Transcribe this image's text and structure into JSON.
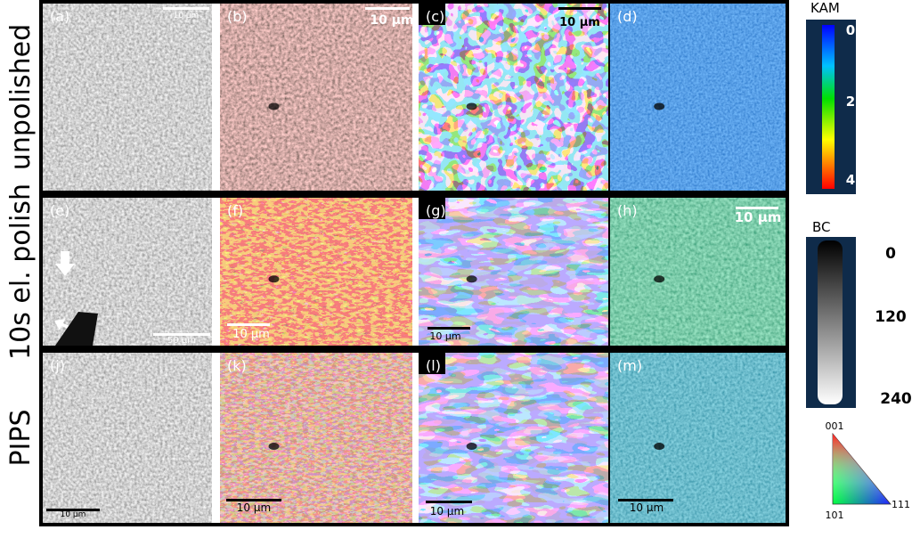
{
  "row_labels": [
    "unpolished",
    "10s el. polish",
    "PIPS"
  ],
  "panels": [
    {
      "label": "(a)",
      "scale_bar": "10 µm"
    },
    {
      "label": "(b)",
      "scale_bar": "10 µm"
    },
    {
      "label": "(c)",
      "scale_bar": "10 µm"
    },
    {
      "label": "(d)"
    },
    {
      "label": "(e)",
      "scale_bar": "50 µm"
    },
    {
      "label": "(f)",
      "scale_bar": "10 µm"
    },
    {
      "label": "(g)",
      "scale_bar": "10 µm"
    },
    {
      "label": "(h)",
      "scale_bar": "10 µm"
    },
    {
      "label": "(j)",
      "scale_bar": "10 µm"
    },
    {
      "label": "(k)",
      "scale_bar": "10 µm"
    },
    {
      "label": "(l)",
      "scale_bar": "10 µm"
    },
    {
      "label": "(m)",
      "scale_bar": "10 µm"
    }
  ],
  "kam_legend": {
    "title": "KAM",
    "ticks": [
      0,
      2,
      4
    ]
  },
  "bc_legend": {
    "title": "BC",
    "ticks": [
      0,
      120,
      240
    ]
  },
  "ipf_legend": {
    "labels": [
      "001",
      "101",
      "111"
    ]
  }
}
